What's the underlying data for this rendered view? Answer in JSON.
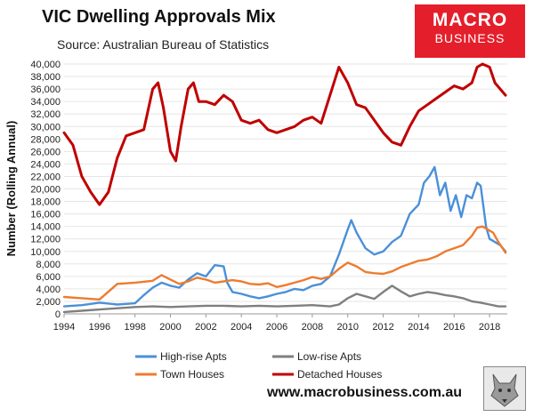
{
  "header": {
    "title": "VIC Dwelling Approvals Mix",
    "source": "Source: Australian Bureau of Statistics",
    "logo_line1": "MACRO",
    "logo_line2": "BUSINESS"
  },
  "footer": {
    "url": "www.macrobusiness.com.au"
  },
  "colors": {
    "high_rise": "#4a90d9",
    "low_rise": "#7f7f7f",
    "town": "#ec7c30",
    "detached": "#c00000",
    "logo_bg": "#e41f2b"
  },
  "chart_data": {
    "type": "line",
    "title": "VIC Dwelling Approvals Mix",
    "xlabel": "",
    "ylabel": "Number (Rolling Annual)",
    "xlim": [
      1994,
      2019
    ],
    "ylim": [
      0,
      40000
    ],
    "x_ticks": [
      1994,
      1996,
      1998,
      2000,
      2002,
      2004,
      2006,
      2008,
      2010,
      2012,
      2014,
      2016,
      2018
    ],
    "y_ticks": [
      0,
      2000,
      4000,
      6000,
      8000,
      10000,
      12000,
      14000,
      16000,
      18000,
      20000,
      22000,
      24000,
      26000,
      28000,
      30000,
      32000,
      34000,
      36000,
      38000,
      40000
    ],
    "x_tick_labels": [
      "1994",
      "1996",
      "1998",
      "2000",
      "2002",
      "2004",
      "2006",
      "2008",
      "2010",
      "2012",
      "2014",
      "2016",
      "2018"
    ],
    "y_tick_labels": [
      "0",
      "2,000",
      "4,000",
      "6,000",
      "8,000",
      "10,000",
      "12,000",
      "14,000",
      "16,000",
      "18,000",
      "20,000",
      "22,000",
      "24,000",
      "26,000",
      "28,000",
      "30,000",
      "32,000",
      "34,000",
      "36,000",
      "38,000",
      "40,000"
    ],
    "legend_placement": "bottom",
    "series": [
      {
        "name": "High-rise Apts",
        "key": "high_rise",
        "x": [
          1994,
          1995,
          1996,
          1997,
          1998,
          1998.5,
          1999,
          1999.5,
          2000,
          2000.5,
          2001,
          2001.5,
          2002,
          2002.5,
          2003,
          2003.2,
          2003.5,
          2004,
          2004.5,
          2005,
          2005.5,
          2006,
          2006.5,
          2007,
          2007.5,
          2008,
          2008.5,
          2009,
          2009.5,
          2010,
          2010.2,
          2010.5,
          2011,
          2011.5,
          2012,
          2012.5,
          2013,
          2013.5,
          2014,
          2014.3,
          2014.6,
          2014.9,
          2015.2,
          2015.5,
          2015.8,
          2016.1,
          2016.4,
          2016.7,
          2017,
          2017.3,
          2017.5,
          2017.8,
          2018,
          2018.3,
          2018.6,
          2018.9
        ],
        "y": [
          1200,
          1400,
          1800,
          1500,
          1700,
          3000,
          4200,
          5000,
          4500,
          4200,
          5500,
          6500,
          6000,
          7800,
          7600,
          5000,
          3500,
          3200,
          2800,
          2500,
          2800,
          3200,
          3500,
          4000,
          3800,
          4500,
          4800,
          6000,
          9500,
          13500,
          15000,
          13000,
          10500,
          9500,
          10000,
          11500,
          12500,
          16000,
          17500,
          21000,
          22000,
          23500,
          19000,
          21000,
          16500,
          19000,
          15500,
          19000,
          18500,
          21000,
          20500,
          14000,
          12000,
          11500,
          11000,
          10000
        ]
      },
      {
        "name": "Low-rise Apts",
        "key": "low_rise",
        "x": [
          1994,
          1995,
          1996,
          1997,
          1998,
          1999,
          2000,
          2001,
          2002,
          2003,
          2004,
          2005,
          2006,
          2007,
          2008,
          2009,
          2009.5,
          2010,
          2010.5,
          2011,
          2011.5,
          2012,
          2012.5,
          2013,
          2013.5,
          2014,
          2014.5,
          2015,
          2015.5,
          2016,
          2016.5,
          2017,
          2017.5,
          2018,
          2018.5,
          2018.9
        ],
        "y": [
          300,
          500,
          700,
          900,
          1100,
          1200,
          1100,
          1200,
          1300,
          1300,
          1200,
          1300,
          1200,
          1300,
          1400,
          1200,
          1500,
          2500,
          3200,
          2800,
          2400,
          3500,
          4500,
          3600,
          2800,
          3200,
          3500,
          3300,
          3000,
          2800,
          2500,
          2000,
          1800,
          1500,
          1200,
          1200
        ]
      },
      {
        "name": "Town Houses",
        "key": "town",
        "x": [
          1994,
          1995,
          1996,
          1997,
          1998,
          1999,
          1999.5,
          2000,
          2000.5,
          2001,
          2001.5,
          2002,
          2002.5,
          2003,
          2003.5,
          2004,
          2004.5,
          2005,
          2005.5,
          2006,
          2006.5,
          2007,
          2007.5,
          2008,
          2008.5,
          2009,
          2009.5,
          2010,
          2010.5,
          2011,
          2011.5,
          2012,
          2012.5,
          2013,
          2013.5,
          2014,
          2014.5,
          2015,
          2015.5,
          2016,
          2016.5,
          2017,
          2017.3,
          2017.6,
          2017.9,
          2018.2,
          2018.5,
          2018.9
        ],
        "y": [
          2700,
          2500,
          2300,
          4800,
          5000,
          5300,
          6200,
          5500,
          4800,
          5200,
          5800,
          5500,
          5000,
          5200,
          5400,
          5200,
          4800,
          4700,
          4900,
          4300,
          4600,
          5000,
          5400,
          5900,
          5600,
          6000,
          7200,
          8200,
          7600,
          6700,
          6500,
          6400,
          6800,
          7500,
          8000,
          8500,
          8700,
          9200,
          10000,
          10500,
          11000,
          12500,
          13800,
          14000,
          13500,
          13000,
          11500,
          9800
        ]
      },
      {
        "name": "Detached Houses",
        "key": "detached",
        "x": [
          1994,
          1994.5,
          1995,
          1995.5,
          1996,
          1996.5,
          1997,
          1997.5,
          1998,
          1998.5,
          1999,
          1999.3,
          1999.6,
          2000,
          2000.3,
          2000.6,
          2001,
          2001.3,
          2001.6,
          2002,
          2002.5,
          2003,
          2003.5,
          2004,
          2004.5,
          2005,
          2005.5,
          2006,
          2006.5,
          2007,
          2007.5,
          2008,
          2008.5,
          2009,
          2009.5,
          2010,
          2010.5,
          2011,
          2011.5,
          2012,
          2012.5,
          2013,
          2013.5,
          2014,
          2014.5,
          2015,
          2015.5,
          2016,
          2016.5,
          2017,
          2017.3,
          2017.6,
          2018,
          2018.3,
          2018.6,
          2018.9
        ],
        "y": [
          29000,
          27000,
          22000,
          19500,
          17500,
          19500,
          25000,
          28500,
          29000,
          29500,
          36000,
          37000,
          33000,
          26000,
          24500,
          30000,
          36000,
          37000,
          34000,
          34000,
          33500,
          35000,
          34000,
          31000,
          30500,
          31000,
          29500,
          29000,
          29500,
          30000,
          31000,
          31500,
          30500,
          35000,
          39500,
          37000,
          33500,
          33000,
          31000,
          29000,
          27500,
          27000,
          30000,
          32500,
          33500,
          34500,
          35500,
          36500,
          36000,
          37000,
          39500,
          40000,
          39500,
          37000,
          36000,
          35000
        ]
      }
    ]
  }
}
